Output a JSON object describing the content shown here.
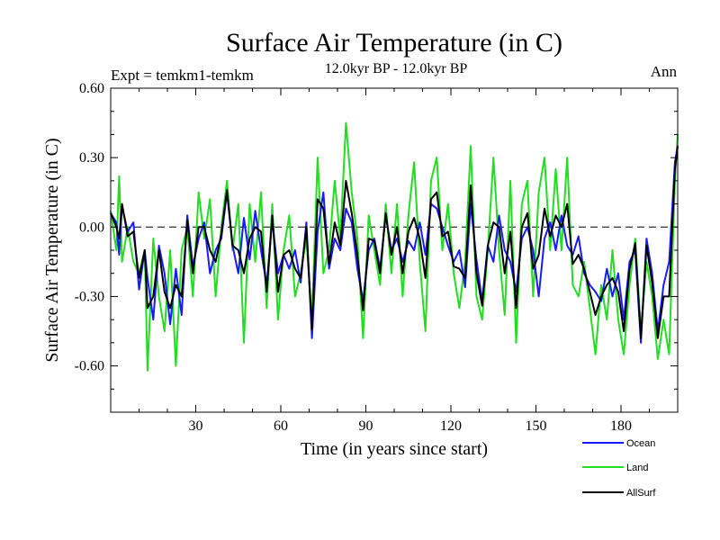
{
  "chart_data": {
    "type": "line",
    "title": "Surface Air Temperature (in C)",
    "subtitle": "12.0kyr BP - 12.0kyr BP",
    "left_label": "Expt = temkm1-temkm",
    "right_label": "Ann",
    "xlabel": "Time (in years since start)",
    "ylabel": "Surface Air Temperature (in C)",
    "xlim": [
      0,
      200
    ],
    "ylim": [
      -0.8,
      0.6
    ],
    "x_ticks": [
      30,
      60,
      90,
      120,
      150,
      180
    ],
    "x_tick_labels": [
      "30",
      "60",
      "90",
      "120",
      "150",
      "180"
    ],
    "y_ticks": [
      0.6,
      0.3,
      0.0,
      -0.3,
      -0.6
    ],
    "y_tick_labels": [
      "0.60",
      "0.30",
      "0.00",
      "-0.30",
      "-0.60"
    ],
    "reference_line": 0.0,
    "colors": {
      "Ocean": "#1a1aff",
      "Land": "#22dd22",
      "AllSurf": "#000000"
    },
    "series": [
      {
        "name": "Ocean",
        "points": [
          [
            0,
            0.06
          ],
          [
            2,
            0.02
          ],
          [
            3,
            -0.12
          ],
          [
            4,
            0.09
          ],
          [
            6,
            -0.02
          ],
          [
            8,
            0.02
          ],
          [
            10,
            -0.27
          ],
          [
            12,
            -0.1
          ],
          [
            13,
            -0.22
          ],
          [
            15,
            -0.4
          ],
          [
            17,
            -0.08
          ],
          [
            19,
            -0.2
          ],
          [
            21,
            -0.42
          ],
          [
            23,
            -0.18
          ],
          [
            25,
            -0.38
          ],
          [
            27,
            0.05
          ],
          [
            29,
            -0.17
          ],
          [
            31,
            -0.05
          ],
          [
            33,
            0.02
          ],
          [
            35,
            -0.2
          ],
          [
            37,
            -0.1
          ],
          [
            39,
            -0.05
          ],
          [
            41,
            0.15
          ],
          [
            43,
            -0.08
          ],
          [
            45,
            -0.2
          ],
          [
            47,
            0.04
          ],
          [
            49,
            -0.14
          ],
          [
            51,
            0.07
          ],
          [
            53,
            -0.1
          ],
          [
            55,
            -0.25
          ],
          [
            57,
            0.03
          ],
          [
            59,
            -0.2
          ],
          [
            61,
            -0.12
          ],
          [
            63,
            -0.18
          ],
          [
            65,
            -0.1
          ],
          [
            67,
            -0.24
          ],
          [
            69,
            0.02
          ],
          [
            71,
            -0.48
          ],
          [
            73,
            -0.02
          ],
          [
            75,
            0.15
          ],
          [
            77,
            -0.18
          ],
          [
            79,
            -0.05
          ],
          [
            81,
            -0.1
          ],
          [
            83,
            0.08
          ],
          [
            85,
            0.02
          ],
          [
            87,
            -0.18
          ],
          [
            89,
            -0.32
          ],
          [
            91,
            -0.1
          ],
          [
            93,
            -0.05
          ],
          [
            95,
            -0.18
          ],
          [
            97,
            0.05
          ],
          [
            99,
            -0.1
          ],
          [
            101,
            -0.05
          ],
          [
            103,
            -0.15
          ],
          [
            105,
            -0.06
          ],
          [
            107,
            -0.1
          ],
          [
            109,
            0.02
          ],
          [
            111,
            -0.12
          ],
          [
            113,
            0.1
          ],
          [
            115,
            0.08
          ],
          [
            117,
            0.0
          ],
          [
            119,
            -0.08
          ],
          [
            121,
            -0.15
          ],
          [
            123,
            -0.1
          ],
          [
            125,
            -0.26
          ],
          [
            127,
            0.1
          ],
          [
            129,
            -0.14
          ],
          [
            131,
            -0.32
          ],
          [
            133,
            -0.08
          ],
          [
            135,
            -0.15
          ],
          [
            137,
            0.05
          ],
          [
            139,
            -0.1
          ],
          [
            141,
            -0.15
          ],
          [
            143,
            -0.28
          ],
          [
            145,
            -0.05
          ],
          [
            147,
            0.0
          ],
          [
            149,
            -0.1
          ],
          [
            151,
            -0.3
          ],
          [
            153,
            -0.05
          ],
          [
            155,
            0.02
          ],
          [
            157,
            -0.1
          ],
          [
            159,
            0.05
          ],
          [
            161,
            -0.08
          ],
          [
            163,
            -0.12
          ],
          [
            165,
            -0.04
          ],
          [
            167,
            -0.2
          ],
          [
            169,
            -0.25
          ],
          [
            171,
            -0.28
          ],
          [
            173,
            -0.32
          ],
          [
            175,
            -0.18
          ],
          [
            177,
            -0.3
          ],
          [
            179,
            -0.2
          ],
          [
            181,
            -0.4
          ],
          [
            183,
            -0.15
          ],
          [
            185,
            -0.1
          ],
          [
            187,
            -0.5
          ],
          [
            189,
            -0.05
          ],
          [
            191,
            -0.2
          ],
          [
            193,
            -0.45
          ],
          [
            195,
            -0.25
          ],
          [
            197,
            -0.15
          ],
          [
            199,
            0.28
          ],
          [
            200,
            0.35
          ]
        ]
      },
      {
        "name": "Land",
        "points": [
          [
            0,
            0.07
          ],
          [
            2,
            -0.1
          ],
          [
            3,
            0.22
          ],
          [
            4,
            -0.15
          ],
          [
            6,
            0.0
          ],
          [
            8,
            -0.15
          ],
          [
            10,
            -0.2
          ],
          [
            12,
            -0.1
          ],
          [
            13,
            -0.62
          ],
          [
            15,
            -0.05
          ],
          [
            17,
            -0.3
          ],
          [
            19,
            -0.45
          ],
          [
            21,
            -0.1
          ],
          [
            23,
            -0.6
          ],
          [
            25,
            -0.1
          ],
          [
            27,
            0.0
          ],
          [
            29,
            -0.3
          ],
          [
            31,
            0.15
          ],
          [
            33,
            -0.05
          ],
          [
            35,
            0.12
          ],
          [
            37,
            -0.3
          ],
          [
            39,
            0.0
          ],
          [
            41,
            0.2
          ],
          [
            43,
            -0.1
          ],
          [
            45,
            0.1
          ],
          [
            47,
            -0.5
          ],
          [
            49,
            0.1
          ],
          [
            51,
            -0.15
          ],
          [
            53,
            0.15
          ],
          [
            55,
            -0.35
          ],
          [
            57,
            0.1
          ],
          [
            59,
            -0.4
          ],
          [
            61,
            -0.1
          ],
          [
            63,
            0.05
          ],
          [
            65,
            -0.3
          ],
          [
            67,
            -0.2
          ],
          [
            69,
            -0.05
          ],
          [
            71,
            -0.4
          ],
          [
            73,
            0.3
          ],
          [
            75,
            -0.2
          ],
          [
            77,
            -0.1
          ],
          [
            79,
            0.2
          ],
          [
            81,
            -0.05
          ],
          [
            83,
            0.45
          ],
          [
            85,
            0.15
          ],
          [
            87,
            -0.05
          ],
          [
            89,
            -0.48
          ],
          [
            91,
            0.05
          ],
          [
            93,
            -0.1
          ],
          [
            95,
            -0.25
          ],
          [
            97,
            0.1
          ],
          [
            99,
            -0.2
          ],
          [
            101,
            0.1
          ],
          [
            103,
            -0.3
          ],
          [
            105,
            0.05
          ],
          [
            107,
            0.28
          ],
          [
            109,
            -0.15
          ],
          [
            111,
            -0.45
          ],
          [
            113,
            0.2
          ],
          [
            115,
            0.3
          ],
          [
            117,
            -0.1
          ],
          [
            119,
            0.1
          ],
          [
            121,
            -0.2
          ],
          [
            123,
            -0.35
          ],
          [
            125,
            -0.15
          ],
          [
            127,
            0.35
          ],
          [
            129,
            -0.3
          ],
          [
            131,
            -0.4
          ],
          [
            133,
            -0.1
          ],
          [
            135,
            0.3
          ],
          [
            137,
            -0.1
          ],
          [
            139,
            -0.38
          ],
          [
            141,
            0.2
          ],
          [
            143,
            -0.5
          ],
          [
            145,
            0.1
          ],
          [
            147,
            0.2
          ],
          [
            149,
            -0.3
          ],
          [
            151,
            0.15
          ],
          [
            153,
            0.3
          ],
          [
            155,
            -0.1
          ],
          [
            157,
            0.25
          ],
          [
            159,
            -0.1
          ],
          [
            161,
            0.3
          ],
          [
            163,
            -0.25
          ],
          [
            165,
            -0.3
          ],
          [
            167,
            -0.15
          ],
          [
            169,
            -0.35
          ],
          [
            171,
            -0.55
          ],
          [
            173,
            -0.25
          ],
          [
            175,
            -0.4
          ],
          [
            177,
            -0.1
          ],
          [
            179,
            -0.4
          ],
          [
            181,
            -0.55
          ],
          [
            183,
            -0.25
          ],
          [
            185,
            -0.05
          ],
          [
            187,
            -0.45
          ],
          [
            189,
            -0.15
          ],
          [
            191,
            -0.3
          ],
          [
            193,
            -0.57
          ],
          [
            195,
            -0.4
          ],
          [
            197,
            -0.55
          ],
          [
            199,
            0.2
          ],
          [
            200,
            0.4
          ]
        ]
      },
      {
        "name": "AllSurf",
        "points": [
          [
            0,
            0.06
          ],
          [
            2,
            0.0
          ],
          [
            3,
            -0.05
          ],
          [
            4,
            0.1
          ],
          [
            6,
            -0.04
          ],
          [
            8,
            -0.02
          ],
          [
            10,
            -0.22
          ],
          [
            12,
            -0.1
          ],
          [
            13,
            -0.35
          ],
          [
            15,
            -0.3
          ],
          [
            17,
            -0.1
          ],
          [
            19,
            -0.28
          ],
          [
            21,
            -0.35
          ],
          [
            23,
            -0.25
          ],
          [
            25,
            -0.3
          ],
          [
            27,
            0.03
          ],
          [
            29,
            -0.2
          ],
          [
            31,
            0.0
          ],
          [
            33,
            0.0
          ],
          [
            35,
            -0.1
          ],
          [
            37,
            -0.15
          ],
          [
            39,
            -0.03
          ],
          [
            41,
            0.16
          ],
          [
            43,
            -0.08
          ],
          [
            45,
            -0.1
          ],
          [
            47,
            -0.2
          ],
          [
            49,
            -0.05
          ],
          [
            51,
            0.0
          ],
          [
            53,
            -0.02
          ],
          [
            55,
            -0.28
          ],
          [
            57,
            0.05
          ],
          [
            59,
            -0.28
          ],
          [
            61,
            -0.12
          ],
          [
            63,
            -0.1
          ],
          [
            65,
            -0.18
          ],
          [
            67,
            -0.22
          ],
          [
            69,
            0.0
          ],
          [
            71,
            -0.44
          ],
          [
            73,
            0.12
          ],
          [
            75,
            0.08
          ],
          [
            77,
            -0.16
          ],
          [
            79,
            0.02
          ],
          [
            81,
            -0.08
          ],
          [
            83,
            0.2
          ],
          [
            85,
            0.06
          ],
          [
            87,
            -0.12
          ],
          [
            89,
            -0.36
          ],
          [
            91,
            -0.05
          ],
          [
            93,
            -0.06
          ],
          [
            95,
            -0.2
          ],
          [
            97,
            0.06
          ],
          [
            99,
            -0.12
          ],
          [
            101,
            0.0
          ],
          [
            103,
            -0.2
          ],
          [
            105,
            -0.02
          ],
          [
            107,
            0.04
          ],
          [
            109,
            -0.05
          ],
          [
            111,
            -0.22
          ],
          [
            113,
            0.12
          ],
          [
            115,
            0.15
          ],
          [
            117,
            -0.04
          ],
          [
            119,
            -0.02
          ],
          [
            121,
            -0.17
          ],
          [
            123,
            -0.18
          ],
          [
            125,
            -0.22
          ],
          [
            127,
            0.18
          ],
          [
            129,
            -0.2
          ],
          [
            131,
            -0.34
          ],
          [
            133,
            -0.08
          ],
          [
            135,
            0.02
          ],
          [
            137,
            0.0
          ],
          [
            139,
            -0.2
          ],
          [
            141,
            -0.02
          ],
          [
            143,
            -0.35
          ],
          [
            145,
            0.0
          ],
          [
            147,
            0.06
          ],
          [
            149,
            -0.18
          ],
          [
            151,
            -0.12
          ],
          [
            153,
            0.08
          ],
          [
            155,
            -0.04
          ],
          [
            157,
            0.05
          ],
          [
            159,
            0.0
          ],
          [
            161,
            0.1
          ],
          [
            163,
            -0.16
          ],
          [
            165,
            -0.12
          ],
          [
            167,
            -0.18
          ],
          [
            169,
            -0.28
          ],
          [
            171,
            -0.38
          ],
          [
            173,
            -0.3
          ],
          [
            175,
            -0.25
          ],
          [
            177,
            -0.22
          ],
          [
            179,
            -0.28
          ],
          [
            181,
            -0.45
          ],
          [
            183,
            -0.18
          ],
          [
            185,
            -0.07
          ],
          [
            187,
            -0.48
          ],
          [
            189,
            -0.08
          ],
          [
            191,
            -0.24
          ],
          [
            193,
            -0.48
          ],
          [
            195,
            -0.3
          ],
          [
            197,
            -0.3
          ],
          [
            199,
            0.25
          ],
          [
            200,
            0.35
          ]
        ]
      }
    ]
  }
}
